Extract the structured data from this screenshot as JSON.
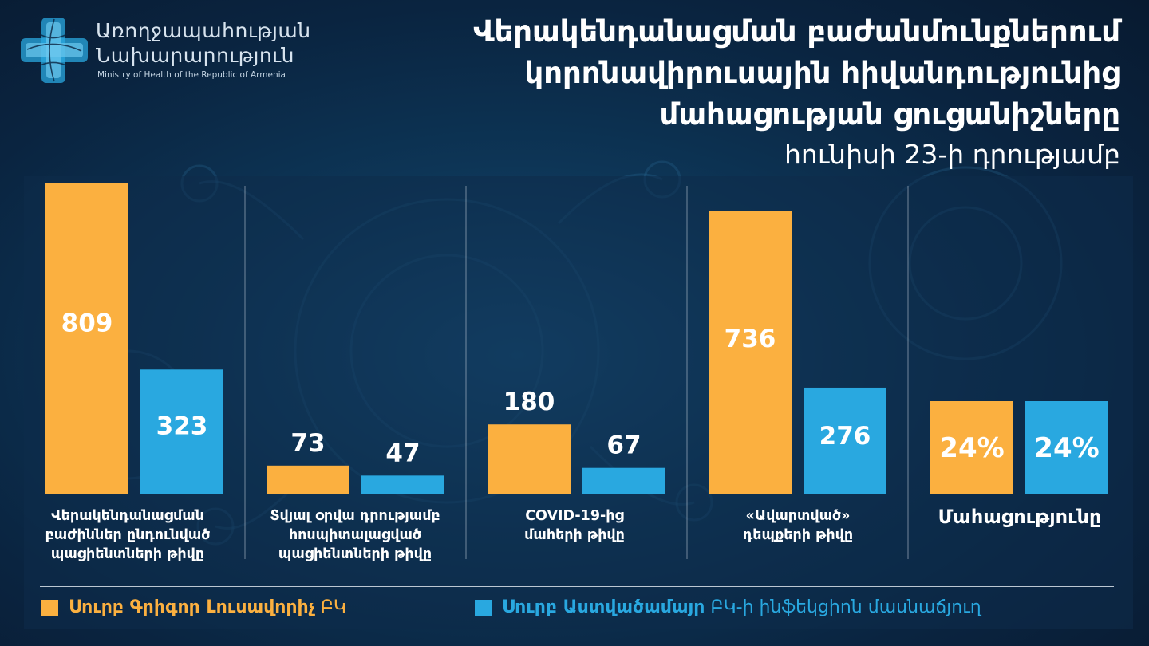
{
  "header": {
    "logo_line1": "Առողջապահության",
    "logo_line2": "Նախարարություն",
    "logo_line3": "Ministry of Health of the Republic of Armenia",
    "title_lines": [
      "Վերակենդանացման բաժանմունքներում",
      "կորոնավիրուսային հիվանդությունից",
      "մահացության ցուցանիշները"
    ],
    "subtitle": "հունիսի 23-ի դրությամբ"
  },
  "colors": {
    "orange": "#fbb040",
    "blue": "#29a8e0",
    "background": "#0d3556"
  },
  "chart_data": {
    "type": "bar",
    "categories": [
      "Վերակենդանացման\nբաժիններ ընդունված\nպացիենտների թիվը",
      "Տվյալ օրվա դրությամբ\nհոսպիտալացված\nպացիենտների թիվը",
      "COVID-19-ից\nմահերի թիվը",
      "«Ավարտված»\nդեպքերի թիվը",
      "Մահացությունը"
    ],
    "series": [
      {
        "name": "Սուրբ Գրիգոր Լուսավորիչ",
        "name_suffix": "ԲԿ",
        "color": "#fbb040",
        "values": [
          809,
          73,
          180,
          736,
          24
        ],
        "labels": [
          "809",
          "73",
          "180",
          "736",
          "24%"
        ]
      },
      {
        "name": "Սուրբ Աստվածամայր",
        "name_suffix": "ԲԿ-ի ինֆեկցիոն մասնաճյուղ",
        "color": "#29a8e0",
        "values": [
          323,
          47,
          67,
          276,
          24
        ],
        "labels": [
          "323",
          "47",
          "67",
          "276",
          "24%"
        ]
      }
    ],
    "ylim": [
      0,
      809
    ],
    "grid": false,
    "legend": "bottom-left"
  }
}
